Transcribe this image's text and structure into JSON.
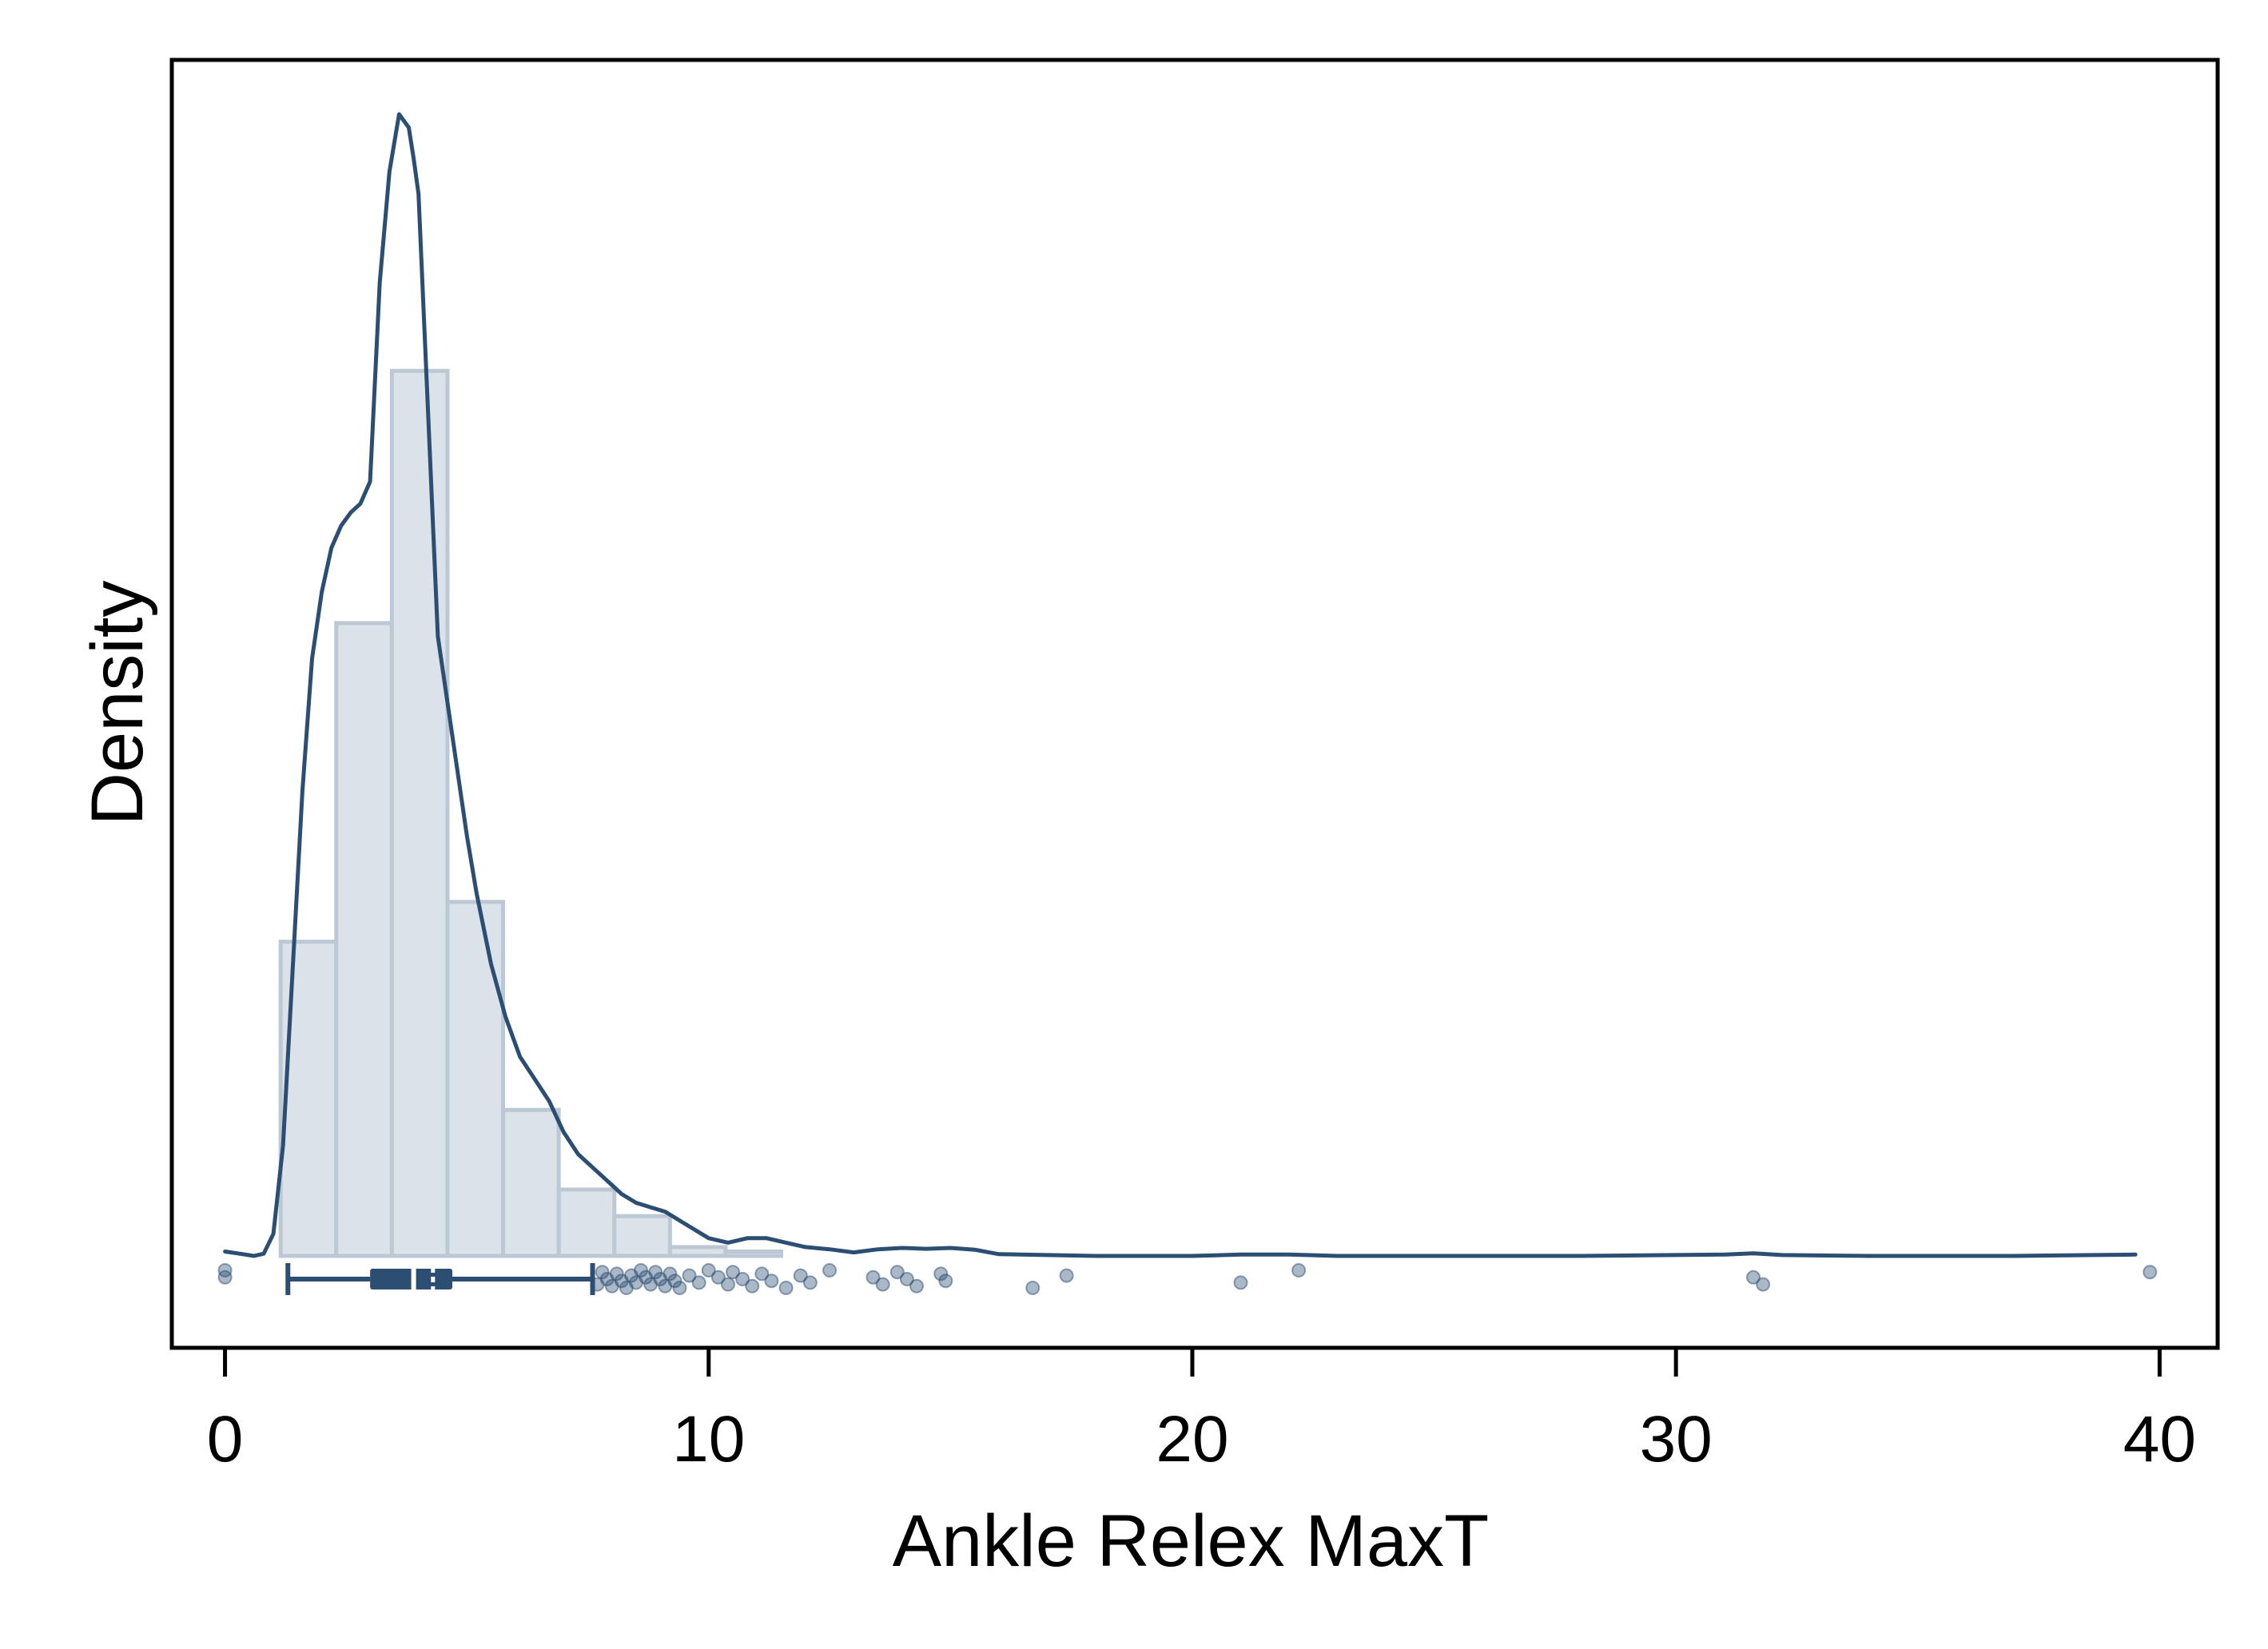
{
  "chart_data": {
    "type": "histogram",
    "title": "",
    "xlabel": "Ankle Relex MaxT",
    "ylabel": "Density",
    "xlim": [
      -1.1,
      41.2
    ],
    "x_ticks": [
      0,
      10,
      20,
      30,
      40
    ],
    "x_tick_labels": [
      "0",
      "10",
      "20",
      "30",
      "40"
    ],
    "y_ticks_shown": false,
    "density_max": 0.258,
    "grid": false,
    "colors": {
      "hist_fill": "#dbe2e9",
      "hist_stroke": "#bcc8d4",
      "line": "#2b4e72",
      "box": "#2b4e72",
      "points": "#2b4e72"
    },
    "histogram": {
      "bin_edges": [
        1.15,
        2.3,
        3.45,
        4.6,
        5.75,
        6.9,
        8.05,
        9.2,
        10.35,
        11.5
      ],
      "densities": [
        0.071,
        0.143,
        0.2,
        0.08,
        0.033,
        0.015,
        0.009,
        0.002,
        0.001
      ]
    },
    "density_curve": {
      "x": [
        0.0,
        0.3,
        0.6,
        0.8,
        1.0,
        1.2,
        1.4,
        1.6,
        1.8,
        2.0,
        2.2,
        2.4,
        2.6,
        2.8,
        3.0,
        3.2,
        3.4,
        3.6,
        3.8,
        3.9,
        4.0,
        4.2,
        4.4,
        4.6,
        4.8,
        5.0,
        5.2,
        5.5,
        5.8,
        6.1,
        6.4,
        6.7,
        7.0,
        7.3,
        7.6,
        7.9,
        8.2,
        8.5,
        8.8,
        9.1,
        9.4,
        9.7,
        10.0,
        10.4,
        10.8,
        11.2,
        11.6,
        12.0,
        12.5,
        13.0,
        13.5,
        14.0,
        14.5,
        15.0,
        15.5,
        16.0,
        17.0,
        18.0,
        20.0,
        21.0,
        22.0,
        23.0,
        25.0,
        28.0,
        31.0,
        31.6,
        32.2,
        34.0,
        37.0,
        39.5
      ],
      "y": [
        0.001,
        0.0005,
        0.0,
        0.0005,
        0.005,
        0.025,
        0.065,
        0.105,
        0.135,
        0.15,
        0.16,
        0.165,
        0.168,
        0.17,
        0.175,
        0.22,
        0.245,
        0.258,
        0.255,
        0.248,
        0.24,
        0.19,
        0.14,
        0.125,
        0.11,
        0.095,
        0.082,
        0.066,
        0.054,
        0.045,
        0.04,
        0.035,
        0.028,
        0.023,
        0.02,
        0.017,
        0.014,
        0.012,
        0.011,
        0.01,
        0.008,
        0.006,
        0.004,
        0.003,
        0.004,
        0.004,
        0.003,
        0.002,
        0.0015,
        0.0008,
        0.0015,
        0.0018,
        0.0016,
        0.0018,
        0.0014,
        0.0004,
        0.0002,
        0.0,
        0.0,
        0.0003,
        0.0003,
        0.0,
        0.0,
        0.0,
        0.0003,
        0.0006,
        0.0002,
        0.0,
        0.0,
        0.0003
      ]
    },
    "boxplot": {
      "whisker_low": 1.3,
      "q1": 3.0,
      "median": 3.9,
      "mean": 4.3,
      "q3": 4.7,
      "whisker_high": 7.6
    },
    "outliers": [
      0.0,
      0.0,
      7.7,
      7.8,
      7.9,
      8.0,
      8.1,
      8.2,
      8.3,
      8.4,
      8.5,
      8.6,
      8.7,
      8.8,
      8.9,
      9.0,
      9.1,
      9.2,
      9.3,
      9.4,
      9.6,
      9.8,
      10.0,
      10.2,
      10.4,
      10.5,
      10.7,
      10.9,
      11.1,
      11.3,
      11.6,
      11.9,
      12.1,
      12.5,
      13.4,
      13.6,
      13.9,
      14.1,
      14.3,
      14.8,
      14.9,
      16.7,
      17.4,
      21.0,
      22.2,
      31.6,
      31.8,
      39.8
    ]
  }
}
